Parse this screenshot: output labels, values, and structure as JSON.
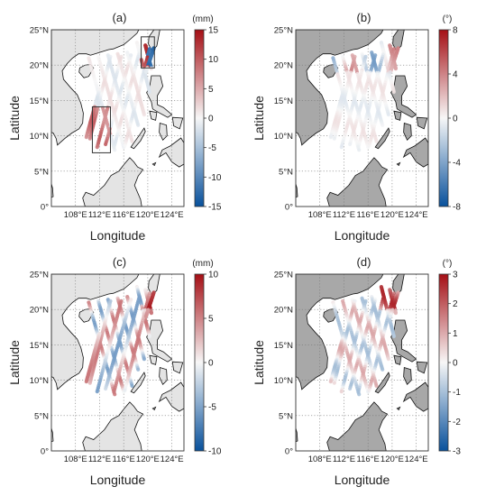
{
  "colors": {
    "land_light": "#e4e4e4",
    "land_dark": "#a8a8a8",
    "sea": "#ffffff",
    "coast": "#111111",
    "grid": "#777777",
    "neg": "#08519c",
    "mid": "#f7f7f7",
    "pos": "#a50f15"
  },
  "panels": [
    {
      "label": "(a)",
      "unit": "(mm)",
      "xlabel": "Longitude",
      "ylabel": "Latitude",
      "lon_ticks": [
        "108°E",
        "112°E",
        "116°E",
        "120°E",
        "124°E"
      ],
      "lat_ticks": [
        "0°",
        "5°N",
        "10°N",
        "15°N",
        "20°N",
        "25°N"
      ],
      "colorbar_ticks": [
        "15",
        "10",
        "5",
        "0",
        "-5",
        "-10",
        "-15"
      ],
      "colorbar_range": [
        -15,
        15
      ],
      "land": "light",
      "highlight_boxes": [
        {
          "lon": [
            110.8,
            113.8
          ],
          "lat": [
            7.6,
            14.1
          ]
        },
        {
          "lon": [
            118.9,
            121.1
          ],
          "lat": [
            19.6,
            24.0
          ]
        }
      ]
    },
    {
      "label": "(b)",
      "unit": "(°)",
      "xlabel": "Longitude",
      "ylabel": "Latitude",
      "lon_ticks": [
        "108°E",
        "112°E",
        "116°E",
        "120°E",
        "124°E"
      ],
      "lat_ticks": [
        "0°",
        "5°N",
        "10°N",
        "15°N",
        "20°N",
        "25°N"
      ],
      "colorbar_ticks": [
        "8",
        "4",
        "0",
        "-4",
        "-8"
      ],
      "colorbar_range": [
        -8,
        8
      ],
      "land": "dark",
      "highlight_boxes": []
    },
    {
      "label": "(c)",
      "unit": "(mm)",
      "xlabel": "Longitude",
      "ylabel": "Latitude",
      "lon_ticks": [
        "108°E",
        "112°E",
        "116°E",
        "120°E",
        "124°E"
      ],
      "lat_ticks": [
        "0°",
        "5°N",
        "10°N",
        "15°N",
        "20°N",
        "25°N"
      ],
      "colorbar_ticks": [
        "10",
        "5",
        "0",
        "-5",
        "-10"
      ],
      "colorbar_range": [
        -10,
        10
      ],
      "land": "light",
      "highlight_boxes": []
    },
    {
      "label": "(d)",
      "unit": "(°)",
      "xlabel": "Longitude",
      "ylabel": "Latitude",
      "lon_ticks": [
        "108°E",
        "112°E",
        "116°E",
        "120°E",
        "124°E"
      ],
      "lat_ticks": [
        "0°",
        "5°N",
        "10°N",
        "15°N",
        "20°N",
        "25°N"
      ],
      "colorbar_ticks": [
        "3",
        "2",
        "1",
        "0",
        "-1",
        "-2",
        "-3"
      ],
      "colorbar_range": [
        -3,
        3
      ],
      "land": "dark",
      "highlight_boxes": []
    }
  ],
  "map_extent": {
    "lon": [
      104,
      126
    ],
    "lat": [
      0,
      25
    ]
  }
}
